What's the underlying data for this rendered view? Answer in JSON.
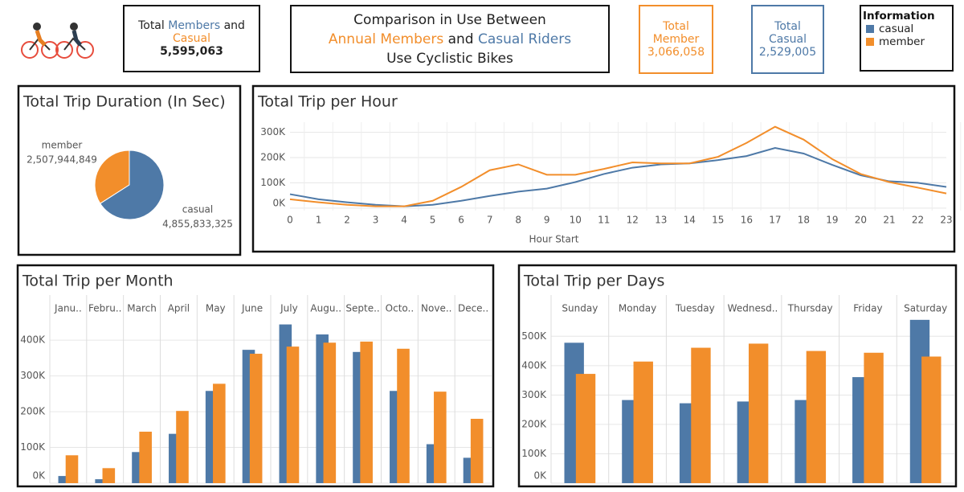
{
  "header": {
    "members_and_casual": {
      "parts": [
        "Total",
        "Members",
        "and",
        "Casual"
      ],
      "value": "5,595,063"
    },
    "title": {
      "line1": "Comparison in Use Between",
      "line2": [
        "Annual Members",
        "and",
        "Casual Riders"
      ],
      "line3": "Use Cyclistic Bikes"
    },
    "total_member": {
      "label": "Total Member",
      "value": "3,066,058"
    },
    "total_casual": {
      "label": "Total Casual",
      "value": "2,529,005"
    },
    "legend": {
      "title": "Information",
      "items": [
        {
          "name": "casual",
          "color": "#4e79a7"
        },
        {
          "name": "member",
          "color": "#f28e2b"
        }
      ]
    }
  },
  "chart_data": [
    {
      "type": "pie",
      "title": "Total Trip Duration (In Sec)",
      "categories": [
        "member",
        "casual"
      ],
      "values": [
        2507944849,
        4855833325
      ],
      "value_labels": [
        "2,507,944,849",
        "4,855,833,325"
      ],
      "colors": [
        "#f28e2b",
        "#4e79a7"
      ]
    },
    {
      "type": "line",
      "title": "Total Trip per Hour",
      "xlabel": "Hour Start",
      "x": [
        0,
        1,
        2,
        3,
        4,
        5,
        6,
        7,
        8,
        9,
        10,
        11,
        12,
        13,
        14,
        15,
        16,
        17,
        18,
        19,
        20,
        21,
        22,
        23
      ],
      "xlim": [
        0,
        23
      ],
      "series": [
        {
          "name": "casual",
          "color": "#4e79a7",
          "values": [
            55000,
            35000,
            23000,
            13000,
            7000,
            13000,
            29000,
            48000,
            65000,
            77000,
            103000,
            135000,
            160000,
            173000,
            177000,
            190000,
            206000,
            238000,
            216000,
            171000,
            130000,
            106000,
            100000,
            84000
          ]
        },
        {
          "name": "member",
          "color": "#f28e2b",
          "values": [
            35000,
            23000,
            13000,
            7000,
            7000,
            29000,
            84000,
            150000,
            173000,
            132000,
            132000,
            155000,
            181000,
            177000,
            177000,
            203000,
            258000,
            322000,
            271000,
            194000,
            135000,
            103000,
            81000,
            58000
          ]
        }
      ],
      "ylim": [
        -10000,
        340000
      ],
      "yticks": [
        {
          "value": 0,
          "label": "0K"
        },
        {
          "value": 100000,
          "label": "100K"
        },
        {
          "value": 200000,
          "label": "200K"
        },
        {
          "value": 300000,
          "label": "300K"
        }
      ],
      "grid": true
    },
    {
      "type": "bar",
      "title": "Total Trip per Month",
      "categories": [
        "Janu..",
        "Febru..",
        "March",
        "April",
        "May",
        "June",
        "July",
        "Augu..",
        "Septe..",
        "Octo..",
        "Nove..",
        "Dece.."
      ],
      "series": [
        {
          "name": "casual",
          "color": "#4e79a7",
          "values": [
            20000,
            11000,
            87000,
            138000,
            258000,
            373000,
            444000,
            416000,
            367000,
            258000,
            109000,
            71000
          ]
        },
        {
          "name": "member",
          "color": "#f28e2b",
          "values": [
            78000,
            42000,
            144000,
            202000,
            278000,
            362000,
            382000,
            393000,
            396000,
            376000,
            256000,
            180000
          ]
        }
      ],
      "ylim": [
        0,
        470000
      ],
      "yticks": [
        {
          "value": 0,
          "label": "0K"
        },
        {
          "value": 100000,
          "label": "100K"
        },
        {
          "value": 200000,
          "label": "200K"
        },
        {
          "value": 300000,
          "label": "300K"
        },
        {
          "value": 400000,
          "label": "400K"
        }
      ],
      "grid": true
    },
    {
      "type": "bar",
      "title": "Total Trip per Days",
      "categories": [
        "Sunday",
        "Monday",
        "Tuesday",
        "Wednesd..",
        "Thursday",
        "Friday",
        "Saturday"
      ],
      "series": [
        {
          "name": "casual",
          "color": "#4e79a7",
          "values": [
            478000,
            283000,
            272000,
            278000,
            283000,
            361000,
            556000
          ]
        },
        {
          "name": "member",
          "color": "#f28e2b",
          "values": [
            372000,
            414000,
            461000,
            475000,
            450000,
            444000,
            431000
          ]
        }
      ],
      "ylim": [
        0,
        572000
      ],
      "yticks": [
        {
          "value": 0,
          "label": "0K"
        },
        {
          "value": 100000,
          "label": "100K"
        },
        {
          "value": 200000,
          "label": "200K"
        },
        {
          "value": 300000,
          "label": "300K"
        },
        {
          "value": 400000,
          "label": "400K"
        },
        {
          "value": 500000,
          "label": "500K"
        }
      ],
      "grid": true
    }
  ]
}
